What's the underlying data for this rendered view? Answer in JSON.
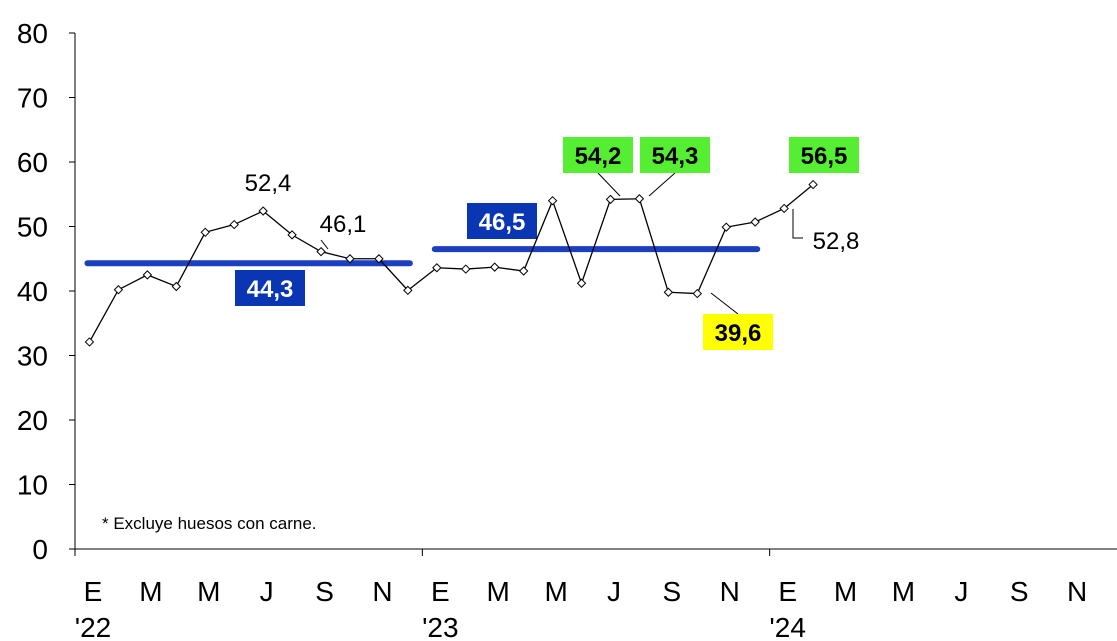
{
  "chart_data": {
    "type": "line",
    "ylim": [
      0,
      80
    ],
    "yticks": [
      "0",
      "10",
      "20",
      "30",
      "40",
      "50",
      "60",
      "70",
      "80"
    ],
    "x_month_labels": [
      "E",
      "M",
      "M",
      "J",
      "S",
      "N",
      "E",
      "M",
      "M",
      "J",
      "S",
      "N",
      "E",
      "M",
      "M",
      "J",
      "S",
      "N"
    ],
    "x_year_labels": [
      "'22",
      "'23",
      "'24"
    ],
    "series": [
      {
        "values": [
          32.1,
          40.2,
          42.5,
          40.7,
          49.1,
          50.3,
          52.4,
          48.7,
          46.1,
          45.0,
          45.0,
          40.1,
          43.6,
          43.4,
          43.7,
          43.1,
          54.0,
          41.2,
          54.2,
          54.3,
          39.8,
          39.6,
          49.9,
          50.7,
          52.8,
          56.5
        ]
      }
    ],
    "averages": [
      {
        "label": "44,3",
        "value": 44.3,
        "from_month": 0,
        "to_month": 11
      },
      {
        "label": "46,5",
        "value": 46.5,
        "from_month": 12,
        "to_month": 23
      }
    ],
    "annotations": [
      {
        "text": "52,4",
        "style": "plain"
      },
      {
        "text": "46,1",
        "style": "plain"
      },
      {
        "text": "52,8",
        "style": "plain"
      },
      {
        "text": "54,2",
        "style": "green"
      },
      {
        "text": "54,3",
        "style": "green"
      },
      {
        "text": "56,5",
        "style": "green"
      },
      {
        "text": "39,6",
        "style": "yellow"
      }
    ],
    "note": "* Excluye huesos con carne.",
    "colors": {
      "line": "#000000",
      "average": "#1b3fbf",
      "avg_box": "#0a36b4",
      "green": "#55ee33",
      "yellow": "#ffff00"
    }
  }
}
